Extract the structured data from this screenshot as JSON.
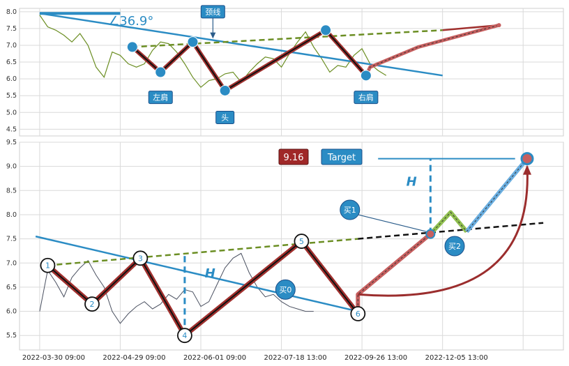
{
  "colors": {
    "price": "#6b8e23",
    "trend": "#2b8cc4",
    "neck": "#6b8e23",
    "pattern": "#a0302e",
    "label_bg": "#2b8cc4",
    "target_bg": "#a02828",
    "projection": "#c65f5f"
  },
  "chart_data": [
    {
      "type": "line",
      "panel": "top",
      "ylim": [
        4.3,
        8.1
      ],
      "yticks": [
        "8.0",
        "7.5",
        "7.0",
        "6.5",
        "6.0",
        "5.5",
        "5.0",
        "4.5"
      ],
      "ytick_values": [
        8.0,
        7.5,
        7.0,
        6.5,
        6.0,
        5.5,
        5.0,
        4.5
      ],
      "grid": true,
      "series": [
        {
          "role": "price",
          "x": [
            0,
            2,
            4,
            6,
            8,
            10,
            12,
            14,
            16,
            18,
            20,
            22,
            24,
            26,
            28,
            30,
            32,
            34,
            36,
            38,
            40,
            42,
            44,
            46,
            48,
            50,
            52,
            54,
            56,
            58,
            60,
            62,
            64,
            66,
            68,
            70,
            72,
            74,
            76,
            78,
            80,
            82,
            84,
            86
          ],
          "y": [
            7.9,
            7.55,
            7.45,
            7.3,
            7.1,
            7.35,
            7.0,
            6.35,
            6.05,
            6.8,
            6.7,
            6.45,
            6.35,
            6.45,
            6.85,
            7.1,
            7.05,
            6.8,
            6.45,
            6.05,
            5.75,
            5.95,
            6.0,
            6.15,
            6.2,
            5.9,
            6.2,
            6.45,
            6.65,
            6.6,
            6.35,
            6.75,
            7.1,
            7.4,
            6.95,
            6.6,
            6.2,
            6.4,
            6.35,
            6.7,
            6.9,
            6.45,
            6.25,
            6.1
          ]
        }
      ],
      "trendline": [
        [
          0,
          7.95
        ],
        [
          100,
          6.1
        ]
      ],
      "neckline": [
        [
          23,
          6.95
        ],
        [
          100,
          7.45
        ]
      ],
      "neck_extension": [
        [
          100,
          7.45
        ],
        [
          114,
          7.6
        ]
      ],
      "pattern_points": [
        [
          23,
          6.95
        ],
        [
          30,
          6.2
        ],
        [
          38,
          7.1
        ],
        [
          46,
          5.65
        ],
        [
          71,
          7.45
        ],
        [
          81,
          6.1
        ]
      ],
      "projection": [
        [
          81,
          6.1
        ],
        [
          82,
          6.35
        ],
        [
          94,
          6.95
        ],
        [
          114,
          7.6
        ]
      ],
      "pattern_markers_x": [
        23,
        30,
        38,
        46,
        71,
        81
      ],
      "angle_label": "∠36.9°",
      "annotations": [
        {
          "text": "左肩",
          "at": [
            30,
            5.45
          ]
        },
        {
          "text": "头",
          "at": [
            46,
            4.85
          ]
        },
        {
          "text": "右肩",
          "at": [
            81,
            5.45
          ]
        },
        {
          "text": "颈线",
          "at": [
            43,
            8.0
          ]
        }
      ]
    },
    {
      "type": "line",
      "panel": "bottom",
      "ylim": [
        5.2,
        9.5
      ],
      "yticks": [
        "9.5",
        "9.0",
        "8.5",
        "8.0",
        "7.5",
        "7.0",
        "6.5",
        "6.0",
        "5.5"
      ],
      "ytick_values": [
        9.5,
        9.0,
        8.5,
        8.0,
        7.5,
        7.0,
        6.5,
        6.0,
        5.5
      ],
      "xtick_labels": [
        "2022-03-30 09:00",
        "2022-04-29 09:00",
        "2022-06-01 09:00",
        "2022-07-18 13:00",
        "2022-09-26 13:00",
        "2022-12-05 13:00"
      ],
      "xtick_positions": [
        0,
        20,
        40,
        60,
        80,
        100
      ],
      "grid": true,
      "series": [
        {
          "role": "price",
          "x": [
            0,
            2,
            4,
            6,
            8,
            10,
            12,
            14,
            16,
            18,
            20,
            22,
            24,
            26,
            28,
            30,
            32,
            34,
            36,
            38,
            40,
            42,
            44,
            46,
            48,
            50,
            52,
            54,
            56,
            58,
            60,
            62,
            64,
            66,
            68
          ],
          "y": [
            6.0,
            6.85,
            6.6,
            6.3,
            6.7,
            6.9,
            7.05,
            6.75,
            6.5,
            6.0,
            5.75,
            5.95,
            6.1,
            6.2,
            6.05,
            6.15,
            6.35,
            6.25,
            6.45,
            6.4,
            6.1,
            6.2,
            6.55,
            6.9,
            7.1,
            7.2,
            6.8,
            6.5,
            6.3,
            6.35,
            6.2,
            6.1,
            6.05,
            6.0,
            6.0
          ]
        }
      ],
      "trendline": [
        [
          -1,
          7.55
        ],
        [
          79,
          6.0
        ]
      ],
      "neckline": [
        [
          2,
          6.95
        ],
        [
          79,
          7.5
        ]
      ],
      "breakout_line": [
        [
          79,
          7.5
        ],
        [
          125,
          7.83
        ]
      ],
      "pattern_points": [
        [
          2,
          6.95
        ],
        [
          13,
          6.15
        ],
        [
          25,
          7.1
        ],
        [
          36,
          5.5
        ],
        [
          65,
          7.45
        ],
        [
          79,
          5.95
        ]
      ],
      "projection": [
        [
          79,
          5.95
        ],
        [
          79,
          6.35
        ],
        [
          97,
          7.6
        ],
        [
          102,
          8.05
        ],
        [
          106,
          7.65
        ],
        [
          121,
          9.16
        ]
      ],
      "curve": [
        [
          79,
          6.35
        ],
        [
          121,
          9.0
        ]
      ],
      "point_labels": [
        "1",
        "2",
        "3",
        "4",
        "5",
        "6"
      ],
      "target_value": 9.16,
      "target_value_label": "9.16",
      "target_text": "Target",
      "h_label": "H",
      "annotations": [
        {
          "text": "买0",
          "at": [
            61,
            6.45
          ]
        },
        {
          "text": "买1",
          "at": [
            77,
            8.1
          ]
        },
        {
          "text": "买2",
          "at": [
            103,
            7.35
          ]
        }
      ]
    }
  ]
}
